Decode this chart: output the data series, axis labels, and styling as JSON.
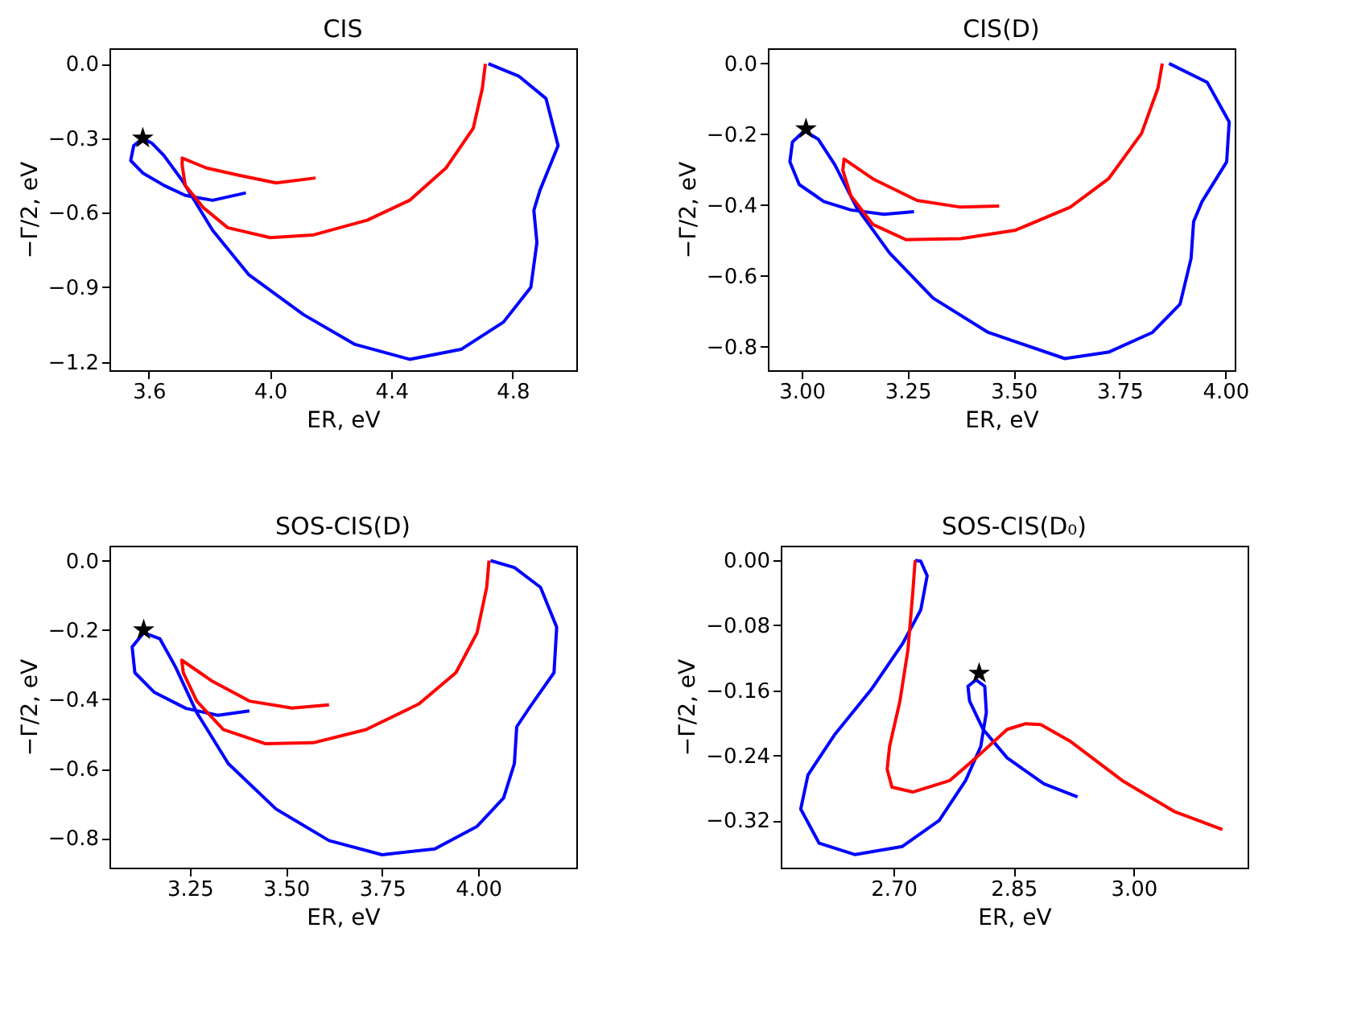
{
  "chart_data": [
    {
      "type": "line",
      "title": "CIS",
      "xlabel": "ER, eV",
      "ylabel": "−Γ/2, eV",
      "xlim": [
        3.47,
        5.01
      ],
      "ylim": [
        -1.234,
        0.062
      ],
      "xticks": [
        3.6,
        {
          "value": 4.0,
          "label": "4.0"
        },
        4.4,
        4.8
      ],
      "yticks": [
        {
          "value": 0,
          "label": "0.0"
        },
        {
          "value": -0.3,
          "label": "−0.3"
        },
        {
          "value": -0.6,
          "label": "−0.6"
        },
        {
          "value": -0.9,
          "label": "−0.9"
        },
        {
          "value": -1.2,
          "label": "−1.2"
        }
      ],
      "grid": false,
      "line_style": "solid",
      "series": [
        {
          "type": "line",
          "color": "#0000ff",
          "x": [
            3.92,
            3.81,
            3.72,
            3.65,
            3.58,
            3.54,
            3.55,
            3.58,
            3.61,
            3.65,
            3.71,
            3.81,
            3.93,
            4.11,
            4.28,
            4.46,
            4.63,
            4.77,
            4.86,
            4.88,
            4.87,
            4.89,
            4.95,
            4.91,
            4.82,
            4.72
          ],
          "values": [
            -0.52,
            -0.55,
            -0.53,
            -0.49,
            -0.44,
            -0.39,
            -0.33,
            -0.3,
            -0.32,
            -0.37,
            -0.47,
            -0.67,
            -0.85,
            -1.01,
            -1.13,
            -1.19,
            -1.15,
            -1.04,
            -0.9,
            -0.72,
            -0.59,
            -0.51,
            -0.33,
            -0.14,
            -0.05,
            0.0
          ]
        },
        {
          "type": "line",
          "color": "#ff0000",
          "x": [
            4.15,
            4.02,
            3.9,
            3.79,
            3.71,
            3.71,
            3.72,
            3.78,
            3.86,
            4.0,
            4.14,
            4.32,
            4.46,
            4.58,
            4.67,
            4.7,
            4.71
          ],
          "values": [
            -0.46,
            -0.48,
            -0.45,
            -0.42,
            -0.38,
            -0.41,
            -0.49,
            -0.58,
            -0.66,
            -0.7,
            -0.69,
            -0.63,
            -0.55,
            -0.42,
            -0.26,
            -0.1,
            0.0
          ]
        },
        {
          "type": "scatter",
          "marker": "star",
          "color": "#000000",
          "x": [
            3.58
          ],
          "values": [
            -0.3
          ]
        }
      ]
    },
    {
      "type": "line",
      "title": "CIS(D)",
      "xlabel": "ER, eV",
      "ylabel": "−Γ/2, eV",
      "xlim": [
        2.92,
        4.022
      ],
      "ylim": [
        -0.867,
        0.043
      ],
      "xticks": [
        {
          "value": 3.0,
          "label": "3.00"
        },
        3.25,
        {
          "value": 3.5,
          "label": "3.50"
        },
        3.75,
        {
          "value": 4.0,
          "label": "4.00"
        }
      ],
      "yticks": [
        {
          "value": 0,
          "label": "0.0"
        },
        {
          "value": -0.2,
          "label": "−0.2"
        },
        {
          "value": -0.4,
          "label": "−0.4"
        },
        {
          "value": -0.6,
          "label": "−0.6"
        },
        {
          "value": -0.8,
          "label": "−0.8"
        }
      ],
      "grid": false,
      "line_style": "solid",
      "series": [
        {
          "type": "line",
          "color": "#0000ff",
          "x": [
            3.265,
            3.194,
            3.116,
            3.052,
            2.994,
            2.972,
            2.978,
            3.006,
            3.039,
            3.078,
            3.129,
            3.207,
            3.31,
            3.44,
            3.621,
            3.724,
            3.828,
            3.893,
            3.919,
            3.925,
            3.945,
            4.003,
            4.009,
            3.957,
            3.867
          ],
          "values": [
            -0.419,
            -0.426,
            -0.414,
            -0.39,
            -0.342,
            -0.278,
            -0.222,
            -0.19,
            -0.214,
            -0.286,
            -0.406,
            -0.535,
            -0.663,
            -0.76,
            -0.834,
            -0.816,
            -0.76,
            -0.68,
            -0.551,
            -0.447,
            -0.39,
            -0.278,
            -0.165,
            -0.053,
            0.0
          ]
        },
        {
          "type": "line",
          "color": "#ff0000",
          "x": [
            3.466,
            3.375,
            3.272,
            3.168,
            3.1,
            3.097,
            3.116,
            3.168,
            3.246,
            3.375,
            3.505,
            3.634,
            3.724,
            3.802,
            3.841,
            3.851
          ],
          "values": [
            -0.403,
            -0.406,
            -0.387,
            -0.326,
            -0.27,
            -0.302,
            -0.374,
            -0.455,
            -0.498,
            -0.495,
            -0.471,
            -0.406,
            -0.326,
            -0.198,
            -0.069,
            0.0
          ]
        },
        {
          "type": "scatter",
          "marker": "star",
          "color": "#000000",
          "x": [
            3.01
          ],
          "values": [
            -0.185
          ]
        }
      ]
    },
    {
      "type": "line",
      "title": "SOS-CIS(D)",
      "xlabel": "ER, eV",
      "ylabel": "−Γ/2, eV",
      "xlim": [
        3.041,
        4.255
      ],
      "ylim": [
        -0.885,
        0.043
      ],
      "xticks": [
        3.25,
        {
          "value": 3.5,
          "label": "3.50"
        },
        3.75,
        {
          "value": 4.0,
          "label": "4.00"
        }
      ],
      "yticks": [
        {
          "value": 0,
          "label": "0.0"
        },
        {
          "value": -0.2,
          "label": "−0.2"
        },
        {
          "value": -0.4,
          "label": "−0.4"
        },
        {
          "value": -0.6,
          "label": "−0.6"
        },
        {
          "value": -0.8,
          "label": "−0.8"
        }
      ],
      "grid": false,
      "line_style": "solid",
      "series": [
        {
          "type": "line",
          "color": "#0000ff",
          "x": [
            3.405,
            3.323,
            3.24,
            3.158,
            3.107,
            3.1,
            3.13,
            3.172,
            3.213,
            3.268,
            3.35,
            3.474,
            3.612,
            3.75,
            3.887,
            3.997,
            4.066,
            4.094,
            4.1,
            4.135,
            4.197,
            4.204,
            4.162,
            4.094,
            4.032
          ],
          "values": [
            -0.433,
            -0.446,
            -0.426,
            -0.38,
            -0.323,
            -0.249,
            -0.208,
            -0.225,
            -0.307,
            -0.438,
            -0.585,
            -0.716,
            -0.807,
            -0.848,
            -0.831,
            -0.766,
            -0.684,
            -0.585,
            -0.479,
            -0.421,
            -0.323,
            -0.192,
            -0.077,
            -0.02,
            0.0
          ]
        },
        {
          "type": "line",
          "color": "#ff0000",
          "x": [
            3.612,
            3.516,
            3.405,
            3.309,
            3.229,
            3.233,
            3.268,
            3.337,
            3.447,
            3.571,
            3.708,
            3.846,
            3.942,
            3.997,
            4.022,
            4.028
          ],
          "values": [
            -0.416,
            -0.425,
            -0.405,
            -0.348,
            -0.287,
            -0.323,
            -0.405,
            -0.487,
            -0.528,
            -0.525,
            -0.487,
            -0.413,
            -0.323,
            -0.208,
            -0.077,
            0.0
          ]
        },
        {
          "type": "scatter",
          "marker": "star",
          "color": "#000000",
          "x": [
            3.13
          ],
          "values": [
            -0.2
          ]
        }
      ]
    },
    {
      "type": "line",
      "title": "SOS-CIS(D₀)",
      "xlabel": "ER, eV",
      "ylabel": "−Γ/2, eV",
      "xlim": [
        2.559,
        3.1425
      ],
      "ylim": [
        -0.378,
        0.018
      ],
      "xticks": [
        {
          "value": 2.7,
          "label": "2.70"
        },
        2.85,
        {
          "value": 3.0,
          "label": "3.00"
        }
      ],
      "yticks": [
        {
          "value": 0,
          "label": "0.00"
        },
        {
          "value": -0.08,
          "label": "−0.08"
        },
        {
          "value": -0.16,
          "label": "−0.16"
        },
        {
          "value": -0.24,
          "label": "−0.24"
        },
        {
          "value": -0.32,
          "label": "−0.32"
        }
      ],
      "grid": false,
      "line_style": "solid",
      "series": [
        {
          "type": "line",
          "color": "#0000ff",
          "x": [
            2.93,
            2.888,
            2.842,
            2.812,
            2.795,
            2.793,
            2.803,
            2.814,
            2.816,
            2.809,
            2.79,
            2.757,
            2.711,
            2.652,
            2.607,
            2.584,
            2.593,
            2.626,
            2.672,
            2.711,
            2.734,
            2.742,
            2.734,
            2.727
          ],
          "values": [
            -0.291,
            -0.275,
            -0.243,
            -0.208,
            -0.173,
            -0.155,
            -0.147,
            -0.155,
            -0.187,
            -0.229,
            -0.271,
            -0.32,
            -0.352,
            -0.362,
            -0.348,
            -0.306,
            -0.264,
            -0.215,
            -0.159,
            -0.103,
            -0.061,
            -0.019,
            -0.001,
            0.0
          ]
        },
        {
          "type": "line",
          "color": "#ff0000",
          "x": [
            3.111,
            3.051,
            2.986,
            2.92,
            2.884,
            2.865,
            2.842,
            2.803,
            2.77,
            2.724,
            2.698,
            2.692,
            2.695,
            2.708,
            2.718,
            2.724,
            2.727
          ],
          "values": [
            -0.331,
            -0.309,
            -0.271,
            -0.222,
            -0.202,
            -0.201,
            -0.208,
            -0.243,
            -0.271,
            -0.285,
            -0.279,
            -0.257,
            -0.229,
            -0.173,
            -0.11,
            -0.04,
            0.0
          ]
        },
        {
          "type": "scatter",
          "marker": "star",
          "color": "#000000",
          "x": [
            2.807
          ],
          "values": [
            -0.139
          ]
        }
      ]
    }
  ]
}
